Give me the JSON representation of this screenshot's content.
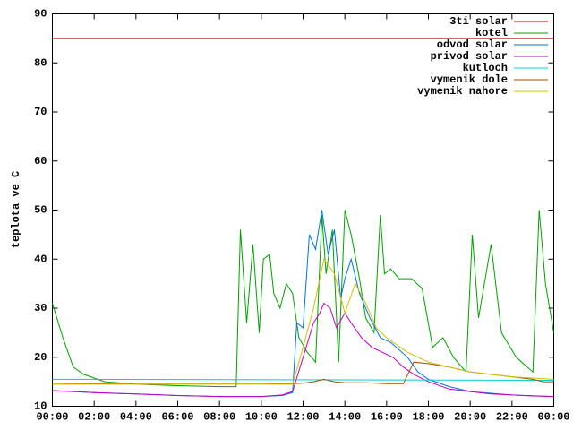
{
  "chart_data": {
    "type": "line",
    "ylabel": "teplota ve C",
    "xlim": [
      0,
      24
    ],
    "xticks": [
      {
        "value": 0,
        "label": "00:00"
      },
      {
        "value": 2,
        "label": "02:00"
      },
      {
        "value": 4,
        "label": "04:00"
      },
      {
        "value": 6,
        "label": "06:00"
      },
      {
        "value": 8,
        "label": "08:00"
      },
      {
        "value": 10,
        "label": "10:00"
      },
      {
        "value": 12,
        "label": "12:00"
      },
      {
        "value": 14,
        "label": "14:00"
      },
      {
        "value": 16,
        "label": "16:00"
      },
      {
        "value": 18,
        "label": "18:00"
      },
      {
        "value": 20,
        "label": "20:00"
      },
      {
        "value": 22,
        "label": "22:00"
      },
      {
        "value": 24,
        "label": "00:00"
      }
    ],
    "ylim": [
      10,
      90
    ],
    "yticks": [
      10,
      20,
      30,
      40,
      50,
      60,
      70,
      80,
      90
    ],
    "legend": "top-right",
    "series": [
      {
        "name": "3ti solar",
        "color": "#c00000",
        "x": [
          0,
          24
        ],
        "values": [
          85,
          85
        ]
      },
      {
        "name": "kotel",
        "color": "#00a000",
        "x": [
          0,
          0.5,
          1,
          1.5,
          2.5,
          4,
          6,
          8,
          8.8,
          9,
          9.3,
          9.6,
          9.9,
          10.1,
          10.4,
          10.6,
          10.9,
          11.2,
          11.5,
          11.8,
          12.2,
          12.6,
          12.9,
          13.1,
          13.4,
          13.7,
          14,
          14.3,
          14.7,
          15,
          15.4,
          15.7,
          15.9,
          16.2,
          16.6,
          17.2,
          17.7,
          18.2,
          18.7,
          19.2,
          19.8,
          20.1,
          20.4,
          21,
          21.5,
          22.2,
          23,
          23.3,
          23.6,
          24
        ],
        "values": [
          31,
          24,
          18,
          16.5,
          15,
          14.5,
          14.2,
          14,
          14,
          46,
          27,
          43,
          25,
          40,
          41,
          33,
          30,
          35,
          33,
          24,
          21,
          19,
          49,
          37,
          46,
          19,
          50,
          45,
          36,
          28,
          25,
          49,
          37,
          38,
          36,
          36,
          34,
          22,
          24,
          20,
          17,
          45,
          28,
          43,
          25,
          20,
          17,
          50,
          35,
          25
        ]
      },
      {
        "name": "odvod solar",
        "color": "#0070e0",
        "x": [
          0,
          2,
          4,
          6,
          8,
          10,
          11,
          11.5,
          11.7,
          12,
          12.3,
          12.6,
          12.9,
          13.2,
          13.5,
          13.8,
          14,
          14.3,
          14.7,
          15.2,
          15.7,
          16.2,
          17,
          17.5,
          18,
          19,
          20,
          22,
          24
        ],
        "values": [
          13.2,
          12.8,
          12.5,
          12.2,
          12,
          12,
          12.2,
          12.8,
          27,
          26,
          45,
          42,
          50,
          41,
          46,
          32,
          36,
          40,
          33,
          28,
          24,
          23,
          20,
          17,
          15.5,
          14,
          13,
          12.3,
          12
        ]
      },
      {
        "name": "privod solar",
        "color": "#c000c0",
        "x": [
          0,
          2,
          4,
          6,
          8,
          10,
          11,
          11.5,
          12,
          12.5,
          12.8,
          13,
          13.3,
          13.6,
          14,
          14.3,
          14.8,
          15.3,
          15.8,
          16.3,
          16.8,
          17.3,
          18,
          19,
          20,
          21,
          22,
          23,
          24
        ],
        "values": [
          13.2,
          12.8,
          12.5,
          12.2,
          12,
          12,
          12.3,
          13,
          20,
          27,
          29,
          31,
          30,
          26,
          29,
          27,
          24,
          22,
          21,
          20,
          18,
          16.5,
          15,
          13.5,
          13,
          12.5,
          12.3,
          12.1,
          12
        ]
      },
      {
        "name": "kutloch",
        "color": "#00d0d0",
        "x": [
          0,
          24
        ],
        "values": [
          15.5,
          15.3
        ]
      },
      {
        "name": "vymenik dole",
        "color": "#a05000",
        "x": [
          0,
          2,
          4,
          6,
          8,
          10,
          11.5,
          12,
          12.5,
          13,
          13.5,
          14,
          15,
          16,
          16.8,
          17.3,
          18,
          19,
          20,
          21,
          22,
          23,
          23.5,
          24
        ],
        "values": [
          14.5,
          14.6,
          14.7,
          14.7,
          14.7,
          14.7,
          14.6,
          14.7,
          15,
          15.5,
          15,
          14.8,
          14.8,
          14.6,
          14.6,
          19,
          18.7,
          18,
          17,
          16.5,
          16,
          15.5,
          15,
          15
        ]
      },
      {
        "name": "vymenik nahore",
        "color": "#d0c000",
        "x": [
          0,
          4,
          8,
          11.5,
          12,
          12.5,
          13,
          13.5,
          14,
          14.5,
          15,
          15.5,
          16,
          17,
          18,
          19,
          20,
          21,
          22,
          24
        ],
        "values": [
          14.5,
          14.5,
          14.5,
          14.5,
          22,
          30,
          40,
          37,
          29,
          35,
          31,
          26,
          24,
          21,
          19,
          18,
          17,
          16.5,
          16,
          15.5
        ]
      }
    ]
  }
}
